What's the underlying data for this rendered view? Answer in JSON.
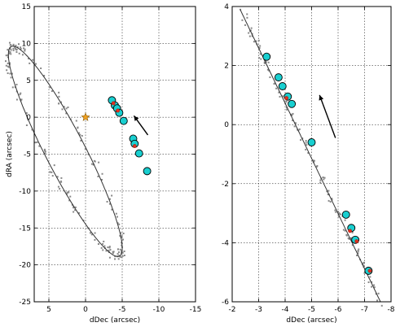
{
  "chart_data": [
    {
      "type": "scatter",
      "xlabel": "dDec (arcsec)",
      "ylabel": "dRA (arcsec)",
      "xlim": [
        7,
        -15
      ],
      "ylim": [
        -25,
        15
      ],
      "xticks": [
        5,
        0,
        -5,
        -10,
        -15
      ],
      "yticks": [
        15,
        10,
        5,
        0,
        -5,
        -10,
        -15,
        -20,
        -25
      ],
      "grid": true,
      "orbit": {
        "center": [
          2.76,
          -4.62
        ],
        "semi_major": 16.0,
        "semi_minor": 2.7,
        "rotation_deg": 62.5
      },
      "star": {
        "x": 0.0,
        "y": 0.0
      },
      "arrow": {
        "from": [
          -8.5,
          -2.4
        ],
        "to": [
          -6.6,
          0.2
        ]
      },
      "highlight_points": [
        {
          "x": -3.6,
          "y": 2.3
        },
        {
          "x": -4.0,
          "y": 1.6
        },
        {
          "x": -4.3,
          "y": 1.2
        },
        {
          "x": -4.6,
          "y": 0.6
        },
        {
          "x": -5.2,
          "y": -0.5
        },
        {
          "x": -6.5,
          "y": -2.9
        },
        {
          "x": -6.7,
          "y": -3.6
        },
        {
          "x": -7.3,
          "y": -4.9
        },
        {
          "x": -8.4,
          "y": -7.3
        }
      ],
      "red_points": [
        {
          "x": -3.8,
          "y": 1.9
        },
        {
          "x": -4.4,
          "y": 0.9
        },
        {
          "x": -6.7,
          "y": -3.9
        }
      ]
    },
    {
      "type": "scatter",
      "xlabel": "dDec (arcsec)",
      "ylabel": "",
      "xlim": [
        -2,
        -8
      ],
      "ylim": [
        -6,
        4
      ],
      "xticks": [
        -2,
        -3,
        -4,
        -5,
        -6,
        -7,
        -8
      ],
      "yticks": [
        4,
        2,
        0,
        -2,
        -4,
        -6
      ],
      "grid": true,
      "line": {
        "from": [
          -2.3,
          3.9
        ],
        "to": [
          -7.6,
          -6.0
        ]
      },
      "arrow": {
        "from": [
          -5.9,
          -0.45
        ],
        "to": [
          -5.3,
          1.0
        ]
      },
      "highlight_points": [
        {
          "x": -3.3,
          "y": 2.3
        },
        {
          "x": -3.75,
          "y": 1.6
        },
        {
          "x": -3.9,
          "y": 1.3
        },
        {
          "x": -4.1,
          "y": 0.95
        },
        {
          "x": -4.25,
          "y": 0.7
        },
        {
          "x": -5.0,
          "y": -0.6
        },
        {
          "x": -6.3,
          "y": -3.05
        },
        {
          "x": -6.5,
          "y": -3.5
        },
        {
          "x": -6.65,
          "y": -3.9
        },
        {
          "x": -7.15,
          "y": -4.95
        }
      ],
      "red_points": [
        {
          "x": -4.05,
          "y": 0.9
        },
        {
          "x": -6.45,
          "y": -3.6
        },
        {
          "x": -6.7,
          "y": -3.95
        },
        {
          "x": -7.2,
          "y": -4.95
        }
      ]
    }
  ]
}
